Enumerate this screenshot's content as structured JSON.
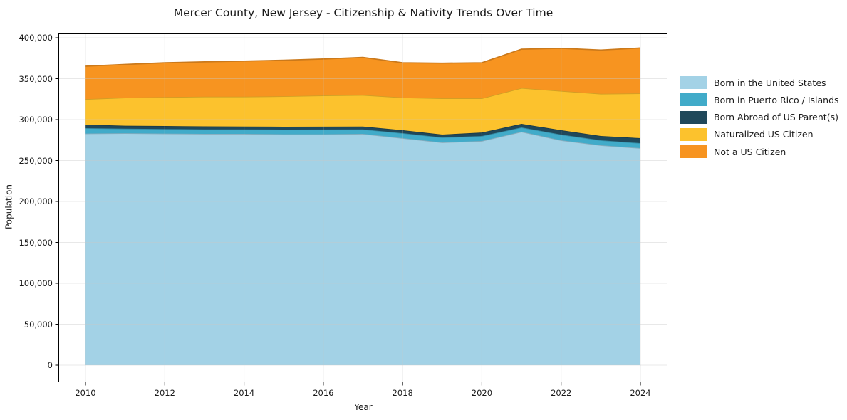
{
  "title": "Mercer County, New Jersey - Citizenship & Nativity Trends Over Time",
  "axes": {
    "xlabel": "Year",
    "ylabel": "Population",
    "x_tick_labels": [
      "2010",
      "2012",
      "2014",
      "2016",
      "2018",
      "2020",
      "2022",
      "2024"
    ],
    "y_tick_labels": [
      "0",
      "50,000",
      "100,000",
      "150,000",
      "200,000",
      "250,000",
      "300,000",
      "350,000",
      "400,000"
    ]
  },
  "chart_data": {
    "type": "area",
    "stacked": true,
    "title": "Mercer County, New Jersey - Citizenship & Nativity Trends Over Time",
    "xlabel": "Year",
    "ylabel": "Population",
    "x": [
      2010,
      2011,
      2012,
      2013,
      2014,
      2015,
      2016,
      2017,
      2018,
      2019,
      2020,
      2021,
      2022,
      2023,
      2024
    ],
    "xlim": [
      2009.3,
      2024.7
    ],
    "ylim": [
      0,
      400000
    ],
    "grid": true,
    "legend_position": "right",
    "series": [
      {
        "name": "Born in the United States",
        "color": "#A3D2E6",
        "values": [
          283000,
          283400,
          283000,
          282600,
          282600,
          282100,
          282100,
          282600,
          277400,
          272200,
          273900,
          285200,
          274800,
          268700,
          265200
        ]
      },
      {
        "name": "Born in Puerto Rico / Islands",
        "color": "#41ABC9",
        "values": [
          6600,
          5500,
          5500,
          5500,
          5500,
          5700,
          5800,
          5500,
          6100,
          6100,
          6100,
          5200,
          6900,
          6100,
          6100
        ]
      },
      {
        "name": "Born Abroad of US Parent(s)",
        "color": "#20485A",
        "values": [
          4300,
          3600,
          3700,
          3600,
          3500,
          3500,
          3500,
          3500,
          3500,
          3400,
          4300,
          4400,
          5300,
          5200,
          6100
        ]
      },
      {
        "name": "Naturalized US Citizen",
        "color": "#FCC22D",
        "values": [
          31100,
          34400,
          35300,
          36300,
          36400,
          37200,
          38100,
          38400,
          40000,
          44300,
          41700,
          43700,
          48000,
          51500,
          54600
        ]
      },
      {
        "name": "Not a US Citizen",
        "color": "#F79420",
        "values": [
          40200,
          40500,
          42000,
          42500,
          43500,
          44000,
          44500,
          46000,
          42500,
          43000,
          43500,
          47500,
          52000,
          53500,
          55500
        ]
      }
    ]
  },
  "colors": {
    "background": "#ffffff",
    "grid": "#c8c8c8",
    "spine": "#000000",
    "text": "#1a1a1a"
  }
}
